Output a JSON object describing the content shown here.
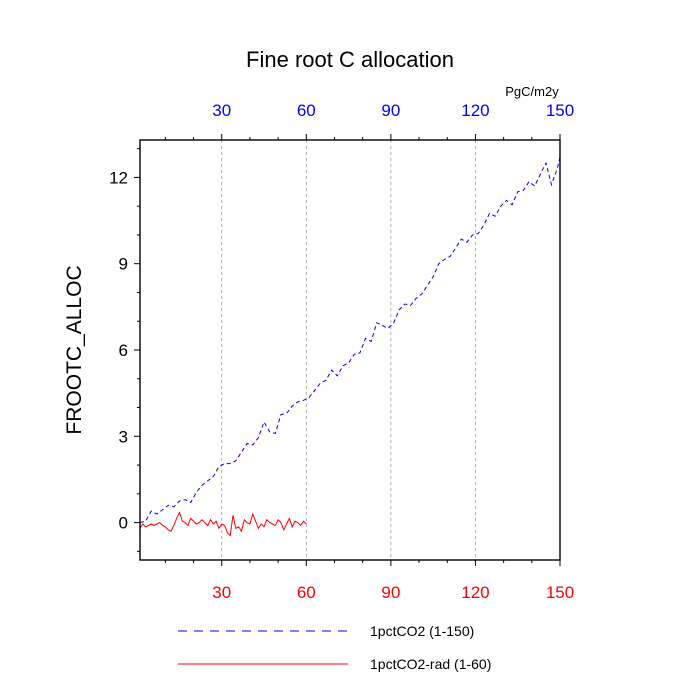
{
  "chart_data": {
    "type": "line",
    "title": "Fine root C allocation",
    "units": "PgC/m2y",
    "ylabel": "FROOTC_ALLOC",
    "xlim": [
      1,
      150
    ],
    "ylim": [
      -1.3,
      13.3
    ],
    "x_ticks": [
      30,
      60,
      90,
      120,
      150
    ],
    "y_ticks": [
      0,
      3,
      6,
      9,
      12
    ],
    "grid": "vertical dashed at x ticks",
    "top_axis_color": "#0000ff",
    "bottom_axis_color": "#ff0000",
    "series": [
      {
        "name": "1pctCO2 (1-150)",
        "color": "#0000ff",
        "style": "dashed",
        "x": [
          1,
          3,
          5,
          7,
          9,
          11,
          13,
          15,
          17,
          19,
          21,
          23,
          25,
          27,
          29,
          31,
          33,
          35,
          37,
          39,
          41,
          43,
          45,
          47,
          49,
          51,
          53,
          55,
          57,
          59,
          61,
          63,
          65,
          67,
          69,
          71,
          73,
          75,
          77,
          79,
          81,
          83,
          85,
          87,
          89,
          91,
          93,
          95,
          97,
          99,
          101,
          103,
          105,
          107,
          109,
          111,
          113,
          115,
          117,
          119,
          121,
          123,
          125,
          127,
          129,
          131,
          133,
          135,
          137,
          139,
          141,
          143,
          145,
          147,
          149,
          150
        ],
        "y": [
          0.0,
          0.05,
          0.4,
          0.3,
          0.45,
          0.6,
          0.55,
          0.75,
          0.8,
          0.7,
          1.05,
          1.3,
          1.45,
          1.6,
          1.95,
          2.05,
          2.05,
          2.15,
          2.45,
          2.75,
          2.7,
          2.95,
          3.5,
          3.15,
          3.1,
          3.75,
          3.8,
          4.05,
          4.2,
          4.25,
          4.35,
          4.6,
          4.85,
          4.95,
          5.3,
          5.1,
          5.45,
          5.55,
          5.85,
          5.9,
          6.4,
          6.3,
          6.95,
          6.85,
          6.75,
          6.95,
          7.4,
          7.6,
          7.55,
          7.8,
          7.95,
          8.25,
          8.55,
          9.0,
          9.15,
          9.25,
          9.55,
          9.85,
          9.75,
          10.0,
          10.05,
          10.35,
          10.75,
          10.65,
          11.0,
          11.2,
          11.05,
          11.5,
          11.55,
          11.85,
          11.7,
          12.1,
          12.5,
          11.75,
          12.3,
          12.7
        ]
      },
      {
        "name": "1pctCO2-rad (1-60)",
        "color": "#ff0000",
        "style": "solid",
        "x": [
          1,
          2,
          3,
          4,
          5,
          6,
          7,
          8,
          9,
          10,
          11,
          12,
          13,
          14,
          15,
          16,
          17,
          18,
          19,
          20,
          21,
          22,
          23,
          24,
          25,
          26,
          27,
          28,
          29,
          30,
          31,
          32,
          33,
          34,
          35,
          36,
          37,
          38,
          39,
          40,
          41,
          42,
          43,
          44,
          45,
          46,
          47,
          48,
          49,
          50,
          51,
          52,
          53,
          54,
          55,
          56,
          57,
          58,
          59,
          60
        ],
        "y": [
          -0.2,
          -0.05,
          -0.15,
          -0.1,
          -0.05,
          -0.1,
          -0.05,
          0.0,
          -0.1,
          -0.15,
          -0.25,
          -0.3,
          -0.1,
          0.15,
          0.35,
          0.05,
          0.0,
          -0.1,
          0.15,
          0.05,
          -0.05,
          0.0,
          0.1,
          0.0,
          -0.1,
          0.1,
          -0.05,
          0.05,
          -0.2,
          -0.05,
          -0.1,
          -0.35,
          -0.45,
          0.25,
          -0.2,
          -0.15,
          -0.3,
          0.1,
          0.0,
          -0.05,
          0.3,
          0.05,
          -0.2,
          -0.05,
          -0.15,
          0.1,
          0.0,
          -0.05,
          -0.1,
          0.1,
          0.0,
          -0.25,
          -0.05,
          0.15,
          -0.15,
          0.05,
          0.0,
          -0.1,
          0.05,
          -0.05
        ]
      }
    ],
    "legend": {
      "placement": "bottom",
      "entries": [
        "1pctCO2 (1-150)",
        "1pctCO2-rad (1-60)"
      ]
    }
  }
}
